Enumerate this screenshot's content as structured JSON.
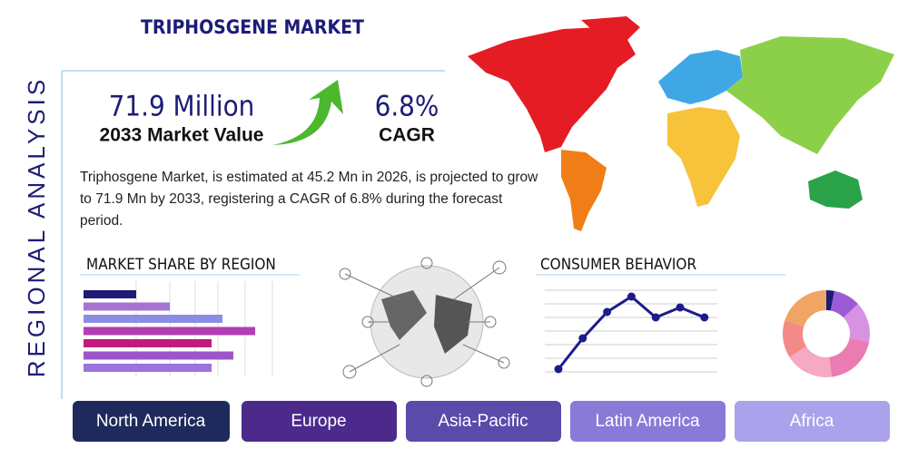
{
  "header": {
    "title": "TRIPHOSGENE MARKET",
    "side_label": "REGIONAL ANALYSIS"
  },
  "stats": [
    {
      "value": "71.9 Million",
      "label": "2033 Market Value"
    },
    {
      "value": "6.8%",
      "label": "CAGR"
    }
  ],
  "description": "Triphosgene Market, is estimated at 45.2 Mn in 2026, is projected to grow to 71.9 Mn by 2033, registering a CAGR of 6.8% during the forecast period.",
  "chart_data": [
    {
      "type": "bar",
      "title": "MARKET SHARE BY REGION",
      "xlim": [
        0,
        210
      ],
      "values": [
        58,
        95,
        153,
        189,
        141,
        165,
        141
      ],
      "colors": [
        "#1c1c78",
        "#a574d2",
        "#8b8ce6",
        "#b23eb4",
        "#c2197c",
        "#9c55ca",
        "#9d72da"
      ]
    },
    {
      "type": "line",
      "title": "CONSUMER BEHAVIOR",
      "ylim": [
        0,
        100
      ],
      "color": "#1c1c8c",
      "values": [
        13,
        47,
        76,
        93,
        70,
        81,
        70
      ],
      "grid": true
    },
    {
      "type": "pie",
      "values": [
        3,
        10,
        15,
        20,
        18,
        14,
        20
      ],
      "colors": [
        "#1c1c78",
        "#9b5bd4",
        "#d892e4",
        "#ea7cb2",
        "#f5a9c3",
        "#f28a88",
        "#f0a565"
      ]
    }
  ],
  "tabs": [
    "North America",
    "Europe",
    "Asia-Pacific",
    "Latin America",
    "Africa"
  ]
}
